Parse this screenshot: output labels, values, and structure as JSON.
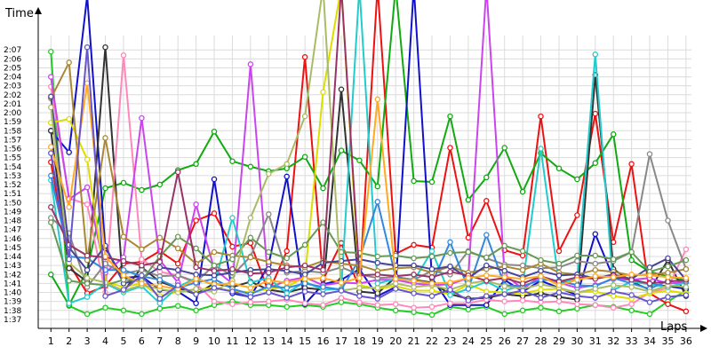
{
  "chart_data": {
    "type": "line",
    "xlabel": "Laps",
    "ylabel": "Time",
    "grid": true,
    "x": [
      1,
      2,
      3,
      4,
      5,
      6,
      7,
      8,
      9,
      10,
      11,
      12,
      13,
      14,
      15,
      16,
      17,
      18,
      19,
      20,
      21,
      22,
      23,
      24,
      25,
      26,
      27,
      28,
      29,
      30,
      31,
      32,
      33,
      34,
      35,
      36
    ],
    "ylim_seconds": [
      96,
      128.6
    ],
    "yticks": [
      "1:37",
      "1:38",
      "1:39",
      "1:40",
      "1:41",
      "1:42",
      "1:43",
      "1:44",
      "1:45",
      "1:46",
      "1:47",
      "1:48",
      "1:49",
      "1:50",
      "1:51",
      "1:52",
      "1:53",
      "1:54",
      "1:55",
      "1:56",
      "1:57",
      "1:58",
      "1:59",
      "2:00",
      "2:01",
      "2:02",
      "2:03",
      "2:04",
      "2:05",
      "2:06",
      "2:07"
    ],
    "xlim": [
      0.3,
      36.3
    ],
    "series": [
      {
        "color": "#22cc22",
        "values": [
          "2:06.8",
          "1:38.5",
          "1:37.6",
          "1:38.3",
          "1:38.0",
          "1:37.6",
          "1:38.2",
          "1:38.5",
          "1:38.0",
          "1:38.6",
          "1:39.0",
          "1:38.6",
          "1:38.6",
          "1:38.4",
          "1:38.6",
          "1:38.4",
          "1:38.9",
          "1:38.7",
          "1:38.3",
          "1:38.0",
          "1:37.8",
          "1:37.5",
          "1:38.4",
          "1:38.1",
          "1:38.4",
          "1:37.6",
          "1:38.0",
          "1:38.3",
          "1:37.9",
          "1:38.2",
          "1:38.6",
          "1:38.4",
          "1:38.0",
          "1:37.6",
          "1:39.0",
          "1:40.2"
        ]
      },
      {
        "color": "#ee1111",
        "values": [
          "1:54.5",
          "1:43.2",
          "1:39.9",
          "1:40.7",
          "1:43.2",
          "1:43.4",
          "1:44.6",
          "1:43.2",
          "1:48.0",
          "1:48.8",
          "1:45.1",
          "1:45.5",
          "1:40.0",
          "1:44.6",
          "2:06.2",
          "1:41.4",
          "1:45.5",
          "1:40.5",
          "2:14.0",
          "1:44.3",
          "1:45.3",
          "1:45.0",
          "1:56.1",
          "1:46.1",
          "1:50.2",
          "1:44.7",
          "1:44.1",
          "1:59.6",
          "1:44.6",
          "1:48.6",
          "1:59.9",
          "1:45.6",
          "1:54.3",
          "1:39.9",
          "1:38.7",
          "1:37.9"
        ]
      },
      {
        "color": "#11aa11",
        "values": [
          "1:42.0",
          "1:38.6",
          "1:42.5",
          "1:51.6",
          "1:52.2",
          "1:51.4",
          "1:52.0",
          "1:53.6",
          "1:54.3",
          "1:57.9",
          "1:54.6",
          "1:54.0",
          "1:53.5",
          "1:53.8",
          "1:55.1",
          "1:51.6",
          "1:55.8",
          "1:54.7",
          "1:51.8",
          "2:14.0",
          "1:52.4",
          "1:52.3",
          "1:59.6",
          "1:50.3",
          "1:52.8",
          "1:56.1",
          "1:51.2",
          "1:55.5",
          "1:53.8",
          "1:52.6",
          "1:54.4",
          "1:57.6",
          "1:43.6",
          "1:42.3",
          "1:41.8",
          "1:41.3"
        ]
      },
      {
        "color": "#1111cc",
        "values": [
          "1:58.0",
          "1:55.6",
          "2:13.0",
          "1:44.9",
          "1:41.6",
          "1:41.8",
          "1:40.3",
          "1:40.1",
          "1:38.8",
          "1:52.6",
          "1:39.9",
          "1:39.5",
          "1:43.1",
          "1:52.9",
          "1:38.7",
          "1:40.9",
          "1:41.4",
          "1:42.6",
          "1:39.6",
          "1:40.6",
          "2:14.0",
          "1:41.6",
          "1:38.6",
          "1:38.6",
          "1:38.6",
          "1:41.4",
          "1:40.1",
          "1:41.3",
          "1:40.5",
          "1:39.7",
          "1:46.5",
          "1:41.6",
          "1:41.5",
          "1:40.9",
          "1:40.7",
          "1:40.4"
        ]
      },
      {
        "color": "#333333",
        "values": [
          "1:58.0",
          "1:42.7",
          "1:41.2",
          "2:07.3",
          "1:40.1",
          "1:42.8",
          "1:41.2",
          "1:40.5",
          "1:39.8",
          "1:41.0",
          "1:40.6",
          "1:41.2",
          "1:40.3",
          "1:40.0",
          "1:40.5",
          "1:40.3",
          "2:02.6",
          "1:40.1",
          "1:39.9",
          "1:41.7",
          "1:41.4",
          "1:41.1",
          "1:39.8",
          "1:39.3",
          "1:39.4",
          "1:39.8",
          "1:39.6",
          "1:39.9",
          "1:39.5",
          "1:39.2",
          "2:04.2",
          "1:42.6",
          "1:41.2",
          "1:40.3",
          "1:43.6",
          "1:39.6"
        ]
      },
      {
        "color": "#ff88bb",
        "values": [
          "2:02.9",
          "1:50.5",
          "1:49.8",
          "1:40.0",
          "2:06.4",
          "1:43.7",
          "1:42.3",
          "1:41.9",
          "1:41.0",
          "1:39.0",
          "1:38.7",
          "1:38.9",
          "1:39.0",
          "1:39.2",
          "1:38.8",
          "1:38.6",
          "1:39.4",
          "1:38.9",
          "1:38.6",
          "1:38.7",
          "1:38.3",
          "1:38.4",
          "1:38.8",
          "1:38.8",
          "1:39.2",
          "1:39.0",
          "1:39.1",
          "1:38.9",
          "1:39.0",
          "1:38.7",
          "1:38.6",
          "1:38.3",
          "1:38.7",
          "1:40.0",
          "1:40.5",
          "1:44.8"
        ]
      },
      {
        "color": "#cc44ee",
        "values": [
          "2:04.0",
          "1:50.4",
          "1:51.7",
          "1:42.2",
          "1:43.9",
          "1:59.4",
          "1:43.6",
          "1:41.1",
          "1:49.8",
          "1:42.6",
          "1:41.0",
          "2:05.4",
          "1:40.5",
          "1:41.3",
          "1:41.7",
          "1:40.8",
          "1:41.1",
          "1:41.0",
          "1:41.4",
          "1:41.4",
          "1:41.0",
          "1:40.8",
          "1:40.9",
          "1:41.6",
          "2:14.0",
          "1:42.0",
          "1:40.4",
          "1:41.8",
          "1:41.1",
          "1:40.5",
          "1:40.8",
          "1:41.5",
          "1:41.4",
          "1:41.6",
          "1:41.0",
          "1:41.1"
        ]
      },
      {
        "color": "#dddd00",
        "values": [
          "1:58.9",
          "1:59.3",
          "1:54.8",
          "1:41.2",
          "1:40.6",
          "1:41.0",
          "1:39.6",
          "1:40.1",
          "1:40.3",
          "1:40.5",
          "1:40.2",
          "1:40.0",
          "1:40.4",
          "1:40.6",
          "1:41.7",
          "2:02.3",
          "2:14.0",
          "1:40.8",
          "1:40.4",
          "1:40.7",
          "1:40.2",
          "1:40.2",
          "1:39.8",
          "1:40.9",
          "1:40.1",
          "1:40.0",
          "1:39.9",
          "1:40.3",
          "1:40.4",
          "1:40.0",
          "1:40.1",
          "1:39.6",
          "1:39.3",
          "1:39.9",
          "1:40.2",
          "1:39.9"
        ]
      },
      {
        "color": "#22cccc",
        "values": [
          "1:52.5",
          "1:38.8",
          "1:39.5",
          "1:41.0",
          "1:40.0",
          "1:40.7",
          "1:38.8",
          "1:40.6",
          "1:41.6",
          "1:40.8",
          "1:48.3",
          "1:41.1",
          "1:41.6",
          "1:39.9",
          "1:41.2",
          "1:40.3",
          "1:40.4",
          "2:14.0",
          "1:41.0",
          "1:41.5",
          "1:41.3",
          "1:44.6",
          "1:39.7",
          "1:40.4",
          "1:41.2",
          "1:40.2",
          "1:40.8",
          "1:56.0",
          "1:41.0",
          "1:41.5",
          "2:06.5",
          "1:40.3",
          "1:41.2",
          "1:40.9",
          "1:40.6",
          "1:41.1"
        ]
      },
      {
        "color": "#888888",
        "values": [
          "1:48.3",
          "1:46.6",
          "1:40.6",
          "1:43.2",
          "1:42.1",
          "1:42.5",
          "1:41.8",
          "1:41.9",
          "1:41.2",
          "1:43.0",
          "1:41.9",
          "1:44.0",
          "1:48.7",
          "1:42.2",
          "1:42.4",
          "1:42.2",
          "1:42.8",
          "1:42.0",
          "1:41.6",
          "1:41.7",
          "1:41.4",
          "1:42.4",
          "1:42.0",
          "1:44.6",
          "1:43.8",
          "1:43.1",
          "1:43.0",
          "1:42.7",
          "1:42.8",
          "1:43.5",
          "1:43.2",
          "1:43.5",
          "1:44.5",
          "1:55.4",
          "1:48.0",
          "1:42.6"
        ]
      },
      {
        "color": "#3388dd",
        "values": [
          "1:53.0",
          "1:44.0",
          "1:43.8",
          "1:42.5",
          "1:42.5",
          "1:41.8",
          "1:41.4",
          "1:40.5",
          "1:41.1",
          "1:41.5",
          "1:40.4",
          "1:39.8",
          "1:40.7",
          "1:40.5",
          "1:41.0",
          "1:40.6",
          "1:40.3",
          "1:43.7",
          "1:50.1",
          "1:41.7",
          "1:41.3",
          "1:41.0",
          "1:45.6",
          "1:40.4",
          "1:46.4",
          "1:40.8",
          "1:40.7",
          "1:41.4",
          "1:41.3",
          "1:40.8",
          "1:40.7",
          "1:41.6",
          "1:41.0",
          "1:40.4",
          "1:41.3",
          "1:41.2"
        ]
      },
      {
        "color": "#aa8833",
        "values": [
          "2:01.6",
          "2:05.6",
          "1:43.6",
          "1:57.2",
          "1:46.2",
          "1:44.8",
          "1:46.1",
          "1:44.9",
          "1:43.2",
          "1:44.5",
          "1:44.1",
          "1:43.9",
          "1:43.4",
          "1:43.0",
          "1:42.8",
          "1:43.5",
          "1:43.2",
          "1:43.0",
          "1:42.4",
          "1:42.7",
          "1:42.8",
          "1:42.2",
          "1:42.9",
          "1:42.2",
          "1:42.6",
          "1:42.9",
          "1:42.5",
          "1:43.2",
          "1:42.2",
          "1:42.0",
          "1:42.5",
          "1:42.3",
          "1:41.9",
          "1:42.0",
          "1:42.2",
          "1:42.6"
        ]
      },
      {
        "color": "#444499",
        "values": [
          "2:01.8",
          "1:45.0",
          "1:42.5",
          "1:45.2",
          "1:41.0",
          "1:41.6",
          "1:42.8",
          "1:42.5",
          "1:42.0",
          "1:41.9",
          "1:42.2",
          "1:42.5",
          "1:42.6",
          "1:42.4",
          "1:42.0",
          "1:43.3",
          "1:43.5",
          "1:43.7",
          "1:43.3",
          "1:43.0",
          "1:43.0",
          "1:42.6",
          "1:42.9",
          "1:41.6",
          "1:43.0",
          "1:42.4",
          "1:41.7",
          "1:42.4",
          "1:41.9",
          "1:42.0",
          "1:41.6",
          "1:42.0",
          "1:41.5",
          "1:42.8",
          "1:43.8",
          "1:41.4"
        ]
      },
      {
        "color": "#669955",
        "values": [
          "1:47.8",
          "1:41.3",
          "1:41.0",
          "1:40.8",
          "1:41.4",
          "1:41.3",
          "1:44.0",
          "1:46.2",
          "1:44.9",
          "1:43.0",
          "1:43.7",
          "1:46.1",
          "1:44.5",
          "1:43.8",
          "1:45.3",
          "1:47.8",
          "1:44.5",
          "1:44.4",
          "1:44.0",
          "1:44.1",
          "1:43.8",
          "1:44.0",
          "1:44.4",
          "1:44.5",
          "1:43.9",
          "1:45.2",
          "1:44.6",
          "1:43.6",
          "1:43.2",
          "1:44.1",
          "1:44.1",
          "1:43.7",
          "1:44.5",
          "1:42.3",
          "1:42.9",
          "1:43.6"
        ]
      },
      {
        "color": "#aabb66",
        "values": [
          "2:00.6",
          "1:43.3",
          "1:41.6",
          "1:41.1",
          "1:40.2",
          "1:40.8",
          "1:40.4",
          "1:40.0",
          "1:40.4",
          "1:40.1",
          "1:41.3",
          "1:48.3",
          "1:53.2",
          "1:54.3",
          "1:59.6",
          "2:14.0",
          "1:40.2",
          "1:40.5",
          "1:40.5",
          "1:41.0",
          "1:40.6",
          "1:40.8",
          "1:40.3",
          "1:41.0",
          "1:41.3",
          "1:40.7",
          "1:40.4",
          "1:40.9",
          "1:40.5",
          "1:40.0",
          "1:40.4",
          "1:40.8",
          "1:40.6",
          "1:40.1",
          "1:40.8",
          "1:40.6"
        ]
      },
      {
        "color": "#993366",
        "values": [
          "1:49.5",
          "1:45.3",
          "1:44.1",
          "1:43.9",
          "1:43.5",
          "1:43.0",
          "1:43.4",
          "1:53.4",
          "1:42.8",
          "1:42.4",
          "1:42.6",
          "1:42.1",
          "1:42.2",
          "1:42.8",
          "1:43.0",
          "1:42.5",
          "2:14.0",
          "1:41.9",
          "1:42.0",
          "1:41.8",
          "1:42.0",
          "1:41.7",
          "1:42.3",
          "1:41.9",
          "1:41.3",
          "1:41.6",
          "1:41.0",
          "1:41.8",
          "1:41.2",
          "1:41.7",
          "1:41.5",
          "1:41.9",
          "1:41.4",
          "1:41.0",
          "1:41.2",
          "1:41.4"
        ]
      },
      {
        "color": "#ffaa22",
        "values": [
          "1:56.2",
          "1:49.5",
          "2:03.3",
          "1:44.0",
          "1:41.9",
          "1:41.0",
          "1:40.7",
          "1:40.4",
          "1:41.5",
          "1:40.9",
          "1:41.0",
          "1:40.5",
          "1:41.3",
          "1:41.1",
          "1:41.5",
          "1:41.6",
          "1:41.1",
          "1:41.6",
          "2:01.5",
          "1:41.5",
          "1:41.3",
          "1:41.0",
          "1:41.1",
          "1:41.6",
          "1:41.9",
          "1:41.7",
          "1:41.5",
          "1:41.8",
          "1:40.8",
          "1:41.4",
          "1:41.8",
          "1:41.7",
          "1:42.0",
          "1:41.9",
          "1:41.7",
          "1:41.6"
        ]
      },
      {
        "color": "#6655cc",
        "values": [
          "1:55.5",
          "1:43.7",
          "2:07.3",
          "1:39.6",
          "1:40.3",
          "1:41.9",
          "1:39.3",
          "1:40.8",
          "1:39.8",
          "1:40.5",
          "1:40.1",
          "1:39.5",
          "1:40.0",
          "1:39.4",
          "1:40.1",
          "1:39.8",
          "1:40.2",
          "1:39.6",
          "1:39.3",
          "1:40.4",
          "1:39.9",
          "1:39.6",
          "1:40.3",
          "1:39.1",
          "1:39.6",
          "1:39.8",
          "1:40.2",
          "1:39.4",
          "1:40.0",
          "1:39.6",
          "1:39.4",
          "1:40.1",
          "1:39.7",
          "1:38.9",
          "1:39.5",
          "1:39.7"
        ]
      }
    ]
  }
}
